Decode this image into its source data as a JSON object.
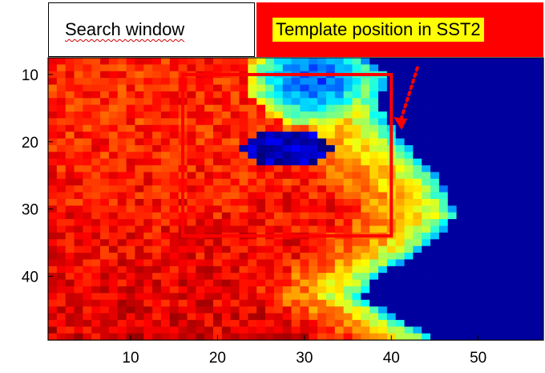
{
  "chart_data": {
    "type": "heatmap",
    "title": "",
    "xlabel": "",
    "ylabel": "",
    "xlim": [
      0.5,
      57.5
    ],
    "ylim": [
      7.5,
      49.5
    ],
    "y_reversed": true,
    "grid": false,
    "colormap": "jet",
    "xticks": [
      "10",
      "20",
      "30",
      "40",
      "50"
    ],
    "yticks": [
      "10",
      "20",
      "30",
      "40"
    ],
    "xtick_values": [
      10,
      20,
      30,
      40,
      50
    ],
    "ytick_values": [
      10,
      20,
      30,
      40
    ],
    "search_window": {
      "x": [
        16,
        40
      ],
      "y": [
        10,
        34
      ]
    },
    "arrow": {
      "from": [
        43,
        9
      ],
      "to": [
        41,
        18
      ]
    },
    "legend": [
      {
        "label": "Search window",
        "color": "#ffffff"
      },
      {
        "label": "Template position in SST2",
        "color": "#ff0000"
      }
    ]
  }
}
